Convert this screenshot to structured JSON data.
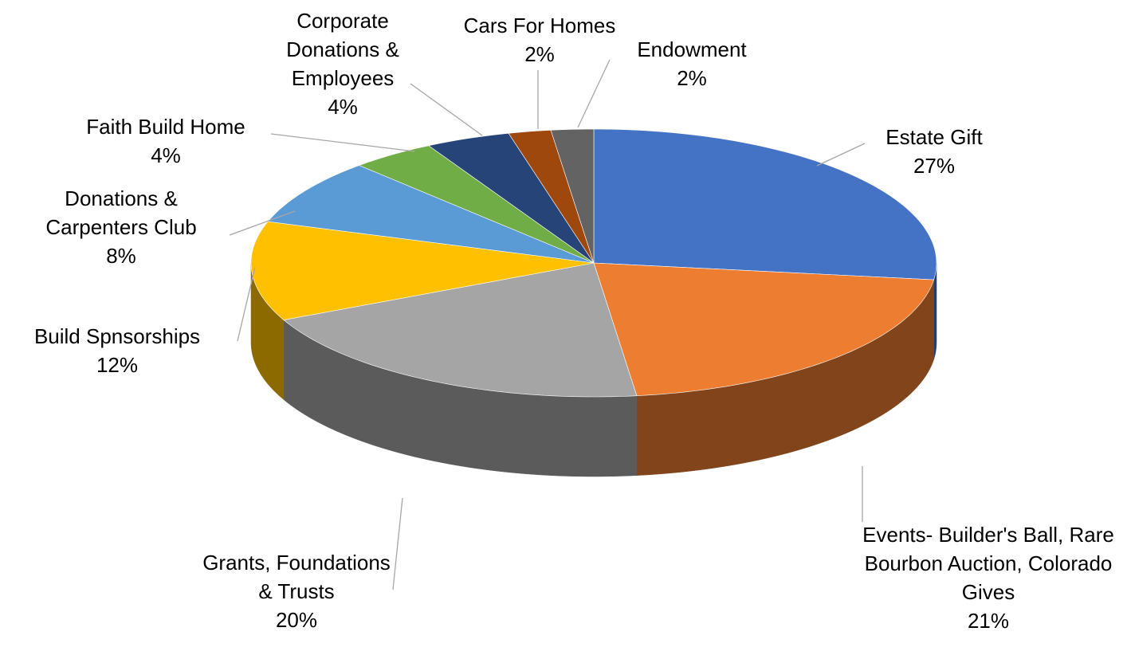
{
  "chart_data": {
    "type": "pie",
    "categories": [
      "Estate Gift",
      "Events- Builder's Ball, Rare Bourbon Auction, Colorado Gives",
      "Grants, Foundations & Trusts",
      "Build Spnsorships",
      "Donations & Carpenters Club",
      "Faith Build Home",
      "Corporate Donations & Employees",
      "Cars For Homes",
      "Endowment"
    ],
    "values": [
      27,
      21,
      20,
      12,
      8,
      4,
      4,
      2,
      2
    ],
    "value_labels": [
      "27%",
      "21%",
      "20%",
      "12%",
      "8%",
      "4%",
      "4%",
      "2%",
      "2%"
    ],
    "colors": [
      "#4472c4",
      "#ed7d31",
      "#a5a5a5",
      "#ffc000",
      "#5b9bd5",
      "#70ad47",
      "#264478",
      "#9e480e",
      "#636363"
    ]
  }
}
